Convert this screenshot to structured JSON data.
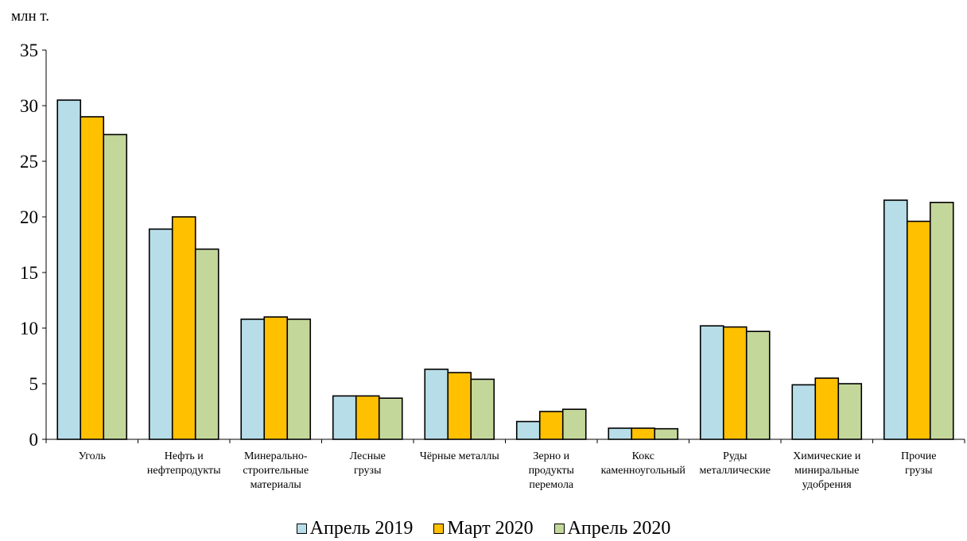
{
  "chart_data": {
    "type": "bar",
    "unit_label": "млн т.",
    "categories": [
      [
        "Уголь"
      ],
      [
        "Нефть и",
        "нефтепродукты"
      ],
      [
        "Минерально-",
        "строительные",
        "материалы"
      ],
      [
        "Лесные",
        "грузы"
      ],
      [
        "Чёрные металлы"
      ],
      [
        "Зерно и",
        "продукты",
        "перемола"
      ],
      [
        "Кокс",
        "каменноугольный"
      ],
      [
        "Руды",
        "металлические"
      ],
      [
        "Химические и",
        "миниральные",
        "удобрения"
      ],
      [
        "Прочие",
        "грузы"
      ]
    ],
    "series": [
      {
        "name": "Апрель 2019",
        "color": "#b7dde8",
        "values": [
          30.5,
          18.9,
          10.8,
          3.9,
          6.3,
          1.6,
          1.0,
          10.2,
          4.9,
          21.5
        ]
      },
      {
        "name": "Март 2020",
        "color": "#ffc000",
        "values": [
          29.0,
          20.0,
          11.0,
          3.9,
          6.0,
          2.5,
          1.0,
          10.1,
          5.5,
          19.6
        ]
      },
      {
        "name": "Апрель 2020",
        "color": "#c4d79b",
        "values": [
          27.4,
          17.1,
          10.8,
          3.7,
          5.4,
          2.7,
          0.95,
          9.7,
          5.0,
          21.3
        ]
      }
    ],
    "yticks": [
      0,
      5,
      10,
      15,
      20,
      25,
      30,
      35
    ],
    "ylim": [
      0,
      35
    ],
    "grid": false,
    "legend_position": "bottom"
  }
}
